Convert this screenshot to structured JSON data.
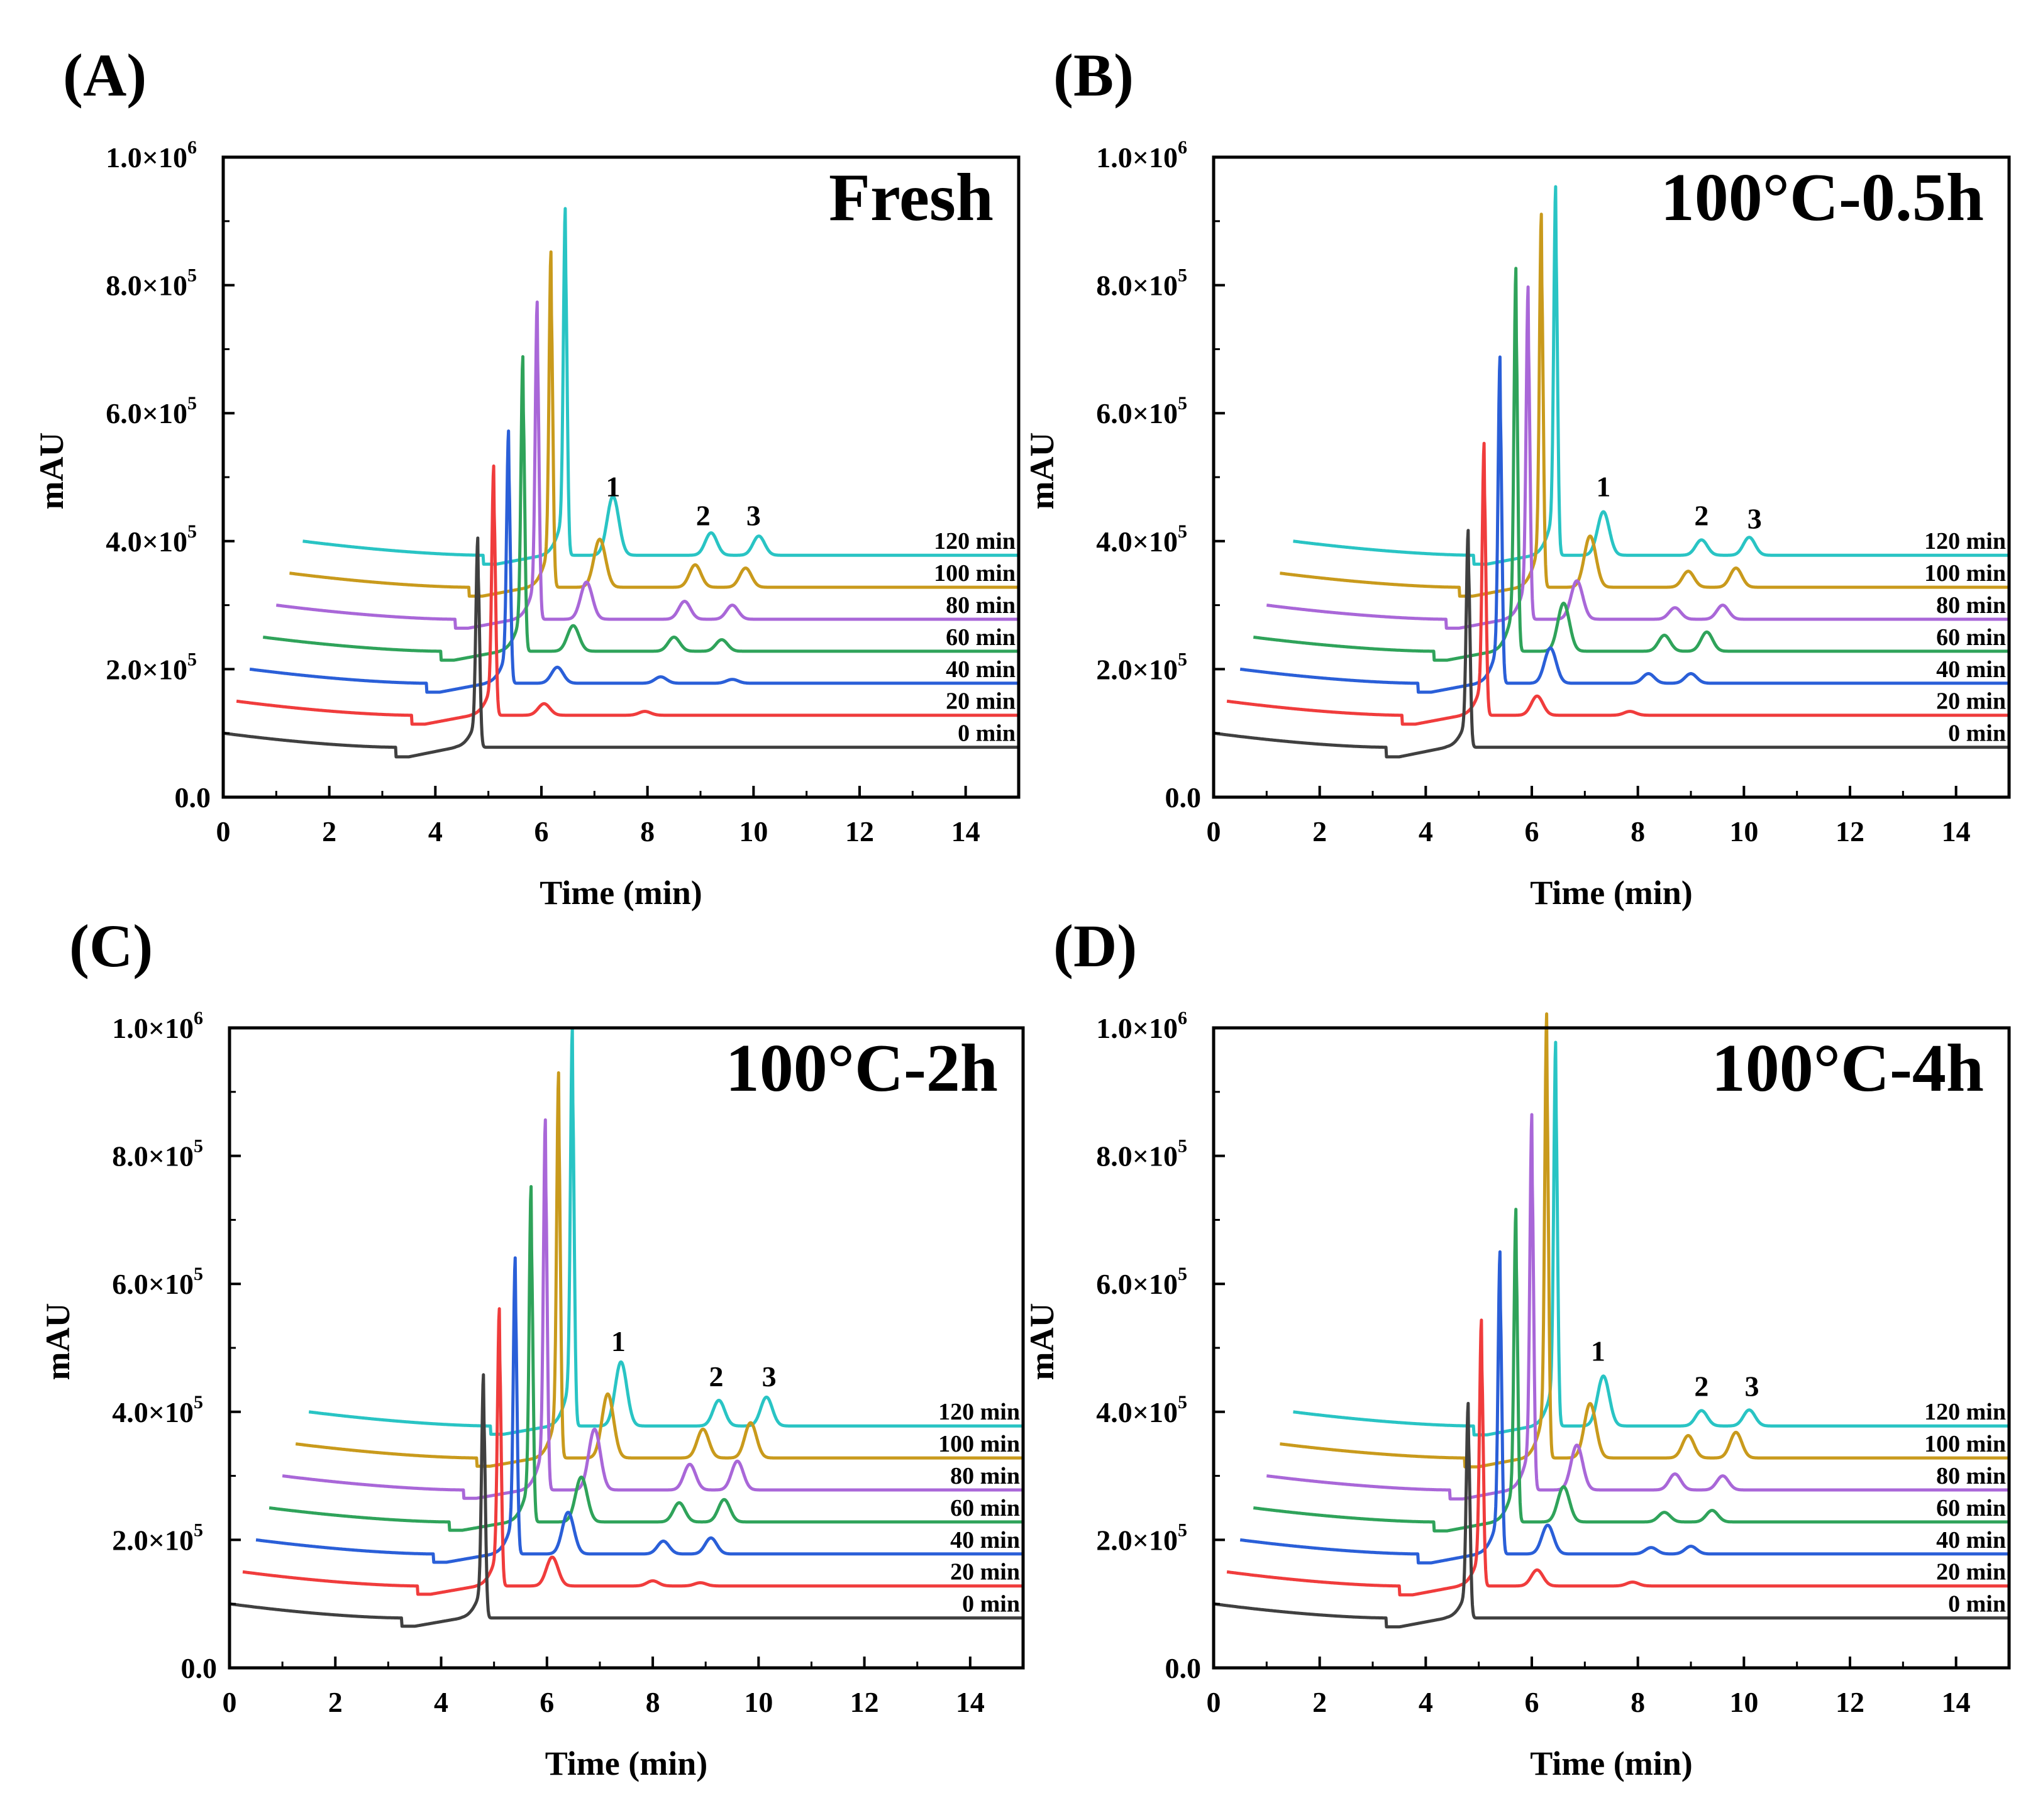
{
  "colors": {
    "0 min": "#404040",
    "20 min": "#f03c3c",
    "40 min": "#2a5fd8",
    "60 min": "#2fa35a",
    "80 min": "#a967d8",
    "100 min": "#c99a1c",
    "120 min": "#29c4c4"
  },
  "chart_data": [
    {
      "panel": "(A)",
      "title": "Fresh",
      "type": "line",
      "xlabel": "Time (min)",
      "ylabel": "mAU",
      "xlim": [
        0,
        15
      ],
      "ylim": [
        0,
        1000000
      ],
      "xticks": [
        "0",
        "2",
        "4",
        "6",
        "8",
        "10",
        "12",
        "14"
      ],
      "yticks": [
        "0.0",
        "2.0×10",
        "4.0×10",
        "6.0×10",
        "8.0×10",
        "1.0×10"
      ],
      "ytick_exponents": [
        "",
        "5",
        "5",
        "5",
        "5",
        "6"
      ],
      "peak_labels": [
        {
          "label": "1",
          "x": 7.35,
          "y": 470000
        },
        {
          "label": "2",
          "x": 9.05,
          "y": 425000
        },
        {
          "label": "3",
          "x": 10.0,
          "y": 425000
        }
      ],
      "series": [
        {
          "name": "0 min",
          "x_start": 0.0,
          "start": 100000,
          "base": 78000,
          "dip": 63000,
          "main_x": 4.8,
          "main_h": 355000,
          "peaks": []
        },
        {
          "name": "20 min",
          "x_start": 0.25,
          "start": 150000,
          "base": 128000,
          "dip": 114000,
          "main_x": 5.1,
          "main_h": 458000,
          "peaks": [
            [
              6.05,
              18000
            ],
            [
              7.95,
              6000
            ]
          ]
        },
        {
          "name": "40 min",
          "x_start": 0.5,
          "start": 200000,
          "base": 178000,
          "dip": 164000,
          "main_x": 5.38,
          "main_h": 512000,
          "peaks": [
            [
              6.3,
              25000
            ],
            [
              8.25,
              10000
            ],
            [
              9.6,
              6000
            ]
          ]
        },
        {
          "name": "60 min",
          "x_start": 0.75,
          "start": 250000,
          "base": 228000,
          "dip": 214000,
          "main_x": 5.65,
          "main_h": 618000,
          "peaks": [
            [
              6.6,
              40000
            ],
            [
              8.5,
              22000
            ],
            [
              9.4,
              18000
            ]
          ]
        },
        {
          "name": "80 min",
          "x_start": 1.0,
          "start": 300000,
          "base": 278000,
          "dip": 264000,
          "main_x": 5.92,
          "main_h": 698000,
          "peaks": [
            [
              6.85,
              58000
            ],
            [
              8.7,
              28000
            ],
            [
              9.6,
              22000
            ]
          ]
        },
        {
          "name": "100 min",
          "x_start": 1.25,
          "start": 350000,
          "base": 328000,
          "dip": 314000,
          "main_x": 6.18,
          "main_h": 772000,
          "peaks": [
            [
              7.1,
              75000
            ],
            [
              8.9,
              35000
            ],
            [
              9.85,
              30000
            ]
          ]
        },
        {
          "name": "120 min",
          "x_start": 1.5,
          "start": 400000,
          "base": 378000,
          "dip": 364000,
          "main_x": 6.45,
          "main_h": 837000,
          "peaks": [
            [
              7.35,
              92000
            ],
            [
              9.2,
              35000
            ],
            [
              10.1,
              30000
            ]
          ]
        }
      ]
    },
    {
      "panel": "(B)",
      "title": "100°C-0.5h",
      "type": "line",
      "xlabel": "Time (min)",
      "ylabel": "mAU",
      "xlim": [
        0,
        15
      ],
      "ylim": [
        0,
        1000000
      ],
      "xticks": [
        "0",
        "2",
        "4",
        "6",
        "8",
        "10",
        "12",
        "14"
      ],
      "yticks": [
        "0.0",
        "2.0×10",
        "4.0×10",
        "6.0×10",
        "8.0×10",
        "1.0×10"
      ],
      "ytick_exponents": [
        "",
        "5",
        "5",
        "5",
        "5",
        "6"
      ],
      "peak_labels": [
        {
          "label": "1",
          "x": 7.35,
          "y": 470000
        },
        {
          "label": "2",
          "x": 9.2,
          "y": 425000
        },
        {
          "label": "3",
          "x": 10.2,
          "y": 420000
        }
      ],
      "series": [
        {
          "name": "0 min",
          "x_start": 0.0,
          "start": 100000,
          "base": 78000,
          "dip": 63000,
          "main_x": 4.8,
          "main_h": 365000,
          "peaks": []
        },
        {
          "name": "20 min",
          "x_start": 0.25,
          "start": 150000,
          "base": 128000,
          "dip": 114000,
          "main_x": 5.1,
          "main_h": 488000,
          "peaks": [
            [
              6.1,
              30000
            ],
            [
              7.85,
              6000
            ]
          ]
        },
        {
          "name": "40 min",
          "x_start": 0.5,
          "start": 200000,
          "base": 178000,
          "dip": 164000,
          "main_x": 5.4,
          "main_h": 610000,
          "peaks": [
            [
              6.35,
              55000
            ],
            [
              8.2,
              15000
            ],
            [
              9.0,
              15000
            ]
          ]
        },
        {
          "name": "60 min",
          "x_start": 0.75,
          "start": 250000,
          "base": 228000,
          "dip": 214000,
          "main_x": 5.7,
          "main_h": 735000,
          "peaks": [
            [
              6.6,
              75000
            ],
            [
              8.5,
              25000
            ],
            [
              9.3,
              30000
            ]
          ]
        },
        {
          "name": "80 min",
          "x_start": 1.0,
          "start": 300000,
          "base": 278000,
          "dip": 264000,
          "main_x": 5.93,
          "main_h": 718000,
          "peaks": [
            [
              6.85,
              60000
            ],
            [
              8.7,
              18000
            ],
            [
              9.6,
              22000
            ]
          ]
        },
        {
          "name": "100 min",
          "x_start": 1.25,
          "start": 350000,
          "base": 328000,
          "dip": 314000,
          "main_x": 6.18,
          "main_h": 822000,
          "peaks": [
            [
              7.1,
              80000
            ],
            [
              8.95,
              25000
            ],
            [
              9.85,
              30000
            ]
          ]
        },
        {
          "name": "120 min",
          "x_start": 1.5,
          "start": 400000,
          "base": 378000,
          "dip": 364000,
          "main_x": 6.45,
          "main_h": 866000,
          "peaks": [
            [
              7.35,
              68000
            ],
            [
              9.2,
              24000
            ],
            [
              10.1,
              28000
            ]
          ]
        }
      ]
    },
    {
      "panel": "(C)",
      "title": "100°C-2h",
      "type": "line",
      "xlabel": "Time (min)",
      "ylabel": "mAU",
      "xlim": [
        0,
        15
      ],
      "ylim": [
        0,
        1000000
      ],
      "xticks": [
        "0",
        "2",
        "4",
        "6",
        "8",
        "10",
        "12",
        "14"
      ],
      "yticks": [
        "0.0",
        "2.0×10",
        "4.0×10",
        "6.0×10",
        "8.0×10",
        "1.0×10"
      ],
      "ytick_exponents": [
        "",
        "5",
        "5",
        "5",
        "5",
        "6"
      ],
      "peak_labels": [
        {
          "label": "1",
          "x": 7.35,
          "y": 495000
        },
        {
          "label": "2",
          "x": 9.2,
          "y": 440000
        },
        {
          "label": "3",
          "x": 10.2,
          "y": 440000
        }
      ],
      "series": [
        {
          "name": "0 min",
          "x_start": 0.0,
          "start": 100000,
          "base": 78000,
          "dip": 65000,
          "main_x": 4.8,
          "main_h": 400000,
          "peaks": []
        },
        {
          "name": "20 min",
          "x_start": 0.25,
          "start": 150000,
          "base": 128000,
          "dip": 115000,
          "main_x": 5.1,
          "main_h": 495000,
          "peaks": [
            [
              6.1,
              45000
            ],
            [
              8.0,
              8000
            ],
            [
              8.9,
              5000
            ]
          ]
        },
        {
          "name": "40 min",
          "x_start": 0.5,
          "start": 200000,
          "base": 178000,
          "dip": 165000,
          "main_x": 5.4,
          "main_h": 570000,
          "peaks": [
            [
              6.4,
              65000
            ],
            [
              8.2,
              20000
            ],
            [
              9.1,
              25000
            ]
          ]
        },
        {
          "name": "60 min",
          "x_start": 0.75,
          "start": 250000,
          "base": 228000,
          "dip": 215000,
          "main_x": 5.7,
          "main_h": 672000,
          "peaks": [
            [
              6.65,
              70000
            ],
            [
              8.5,
              30000
            ],
            [
              9.35,
              35000
            ]
          ]
        },
        {
          "name": "80 min",
          "x_start": 1.0,
          "start": 300000,
          "base": 278000,
          "dip": 265000,
          "main_x": 5.97,
          "main_h": 768000,
          "peaks": [
            [
              6.9,
              95000
            ],
            [
              8.7,
              40000
            ],
            [
              9.6,
              45000
            ]
          ]
        },
        {
          "name": "100 min",
          "x_start": 1.25,
          "start": 350000,
          "base": 328000,
          "dip": 315000,
          "main_x": 6.22,
          "main_h": 838000,
          "peaks": [
            [
              7.15,
              100000
            ],
            [
              8.95,
              45000
            ],
            [
              9.85,
              55000
            ]
          ]
        },
        {
          "name": "120 min",
          "x_start": 1.5,
          "start": 400000,
          "base": 378000,
          "dip": 365000,
          "main_x": 6.48,
          "main_h": 905000,
          "peaks": [
            [
              7.4,
              100000
            ],
            [
              9.25,
              40000
            ],
            [
              10.15,
              45000
            ]
          ]
        }
      ]
    },
    {
      "panel": "(D)",
      "title": "100°C-4h",
      "type": "line",
      "xlabel": "Time (min)",
      "ylabel": "mAU",
      "xlim": [
        0,
        15
      ],
      "ylim": [
        0,
        1000000
      ],
      "xticks": [
        "0",
        "2",
        "4",
        "6",
        "8",
        "10",
        "12",
        "14"
      ],
      "yticks": [
        "0.0",
        "2.0×10",
        "4.0×10",
        "6.0×10",
        "8.0×10",
        "1.0×10"
      ],
      "ytick_exponents": [
        "",
        "5",
        "5",
        "5",
        "5",
        "6"
      ],
      "peak_labels": [
        {
          "label": "1",
          "x": 7.25,
          "y": 480000
        },
        {
          "label": "2",
          "x": 9.2,
          "y": 425000
        },
        {
          "label": "3",
          "x": 10.15,
          "y": 425000
        }
      ],
      "series": [
        {
          "name": "0 min",
          "x_start": 0.0,
          "start": 100000,
          "base": 78000,
          "dip": 64000,
          "main_x": 4.8,
          "main_h": 362000,
          "peaks": []
        },
        {
          "name": "20 min",
          "x_start": 0.25,
          "start": 150000,
          "base": 128000,
          "dip": 114000,
          "main_x": 5.05,
          "main_h": 480000,
          "peaks": [
            [
              6.1,
              25000
            ],
            [
              7.9,
              6000
            ]
          ]
        },
        {
          "name": "40 min",
          "x_start": 0.5,
          "start": 200000,
          "base": 178000,
          "dip": 164000,
          "main_x": 5.4,
          "main_h": 578000,
          "peaks": [
            [
              6.3,
              45000
            ],
            [
              8.25,
              10000
            ],
            [
              9.0,
              12000
            ]
          ]
        },
        {
          "name": "60 min",
          "x_start": 0.75,
          "start": 250000,
          "base": 228000,
          "dip": 214000,
          "main_x": 5.7,
          "main_h": 642000,
          "peaks": [
            [
              6.6,
              55000
            ],
            [
              8.5,
              15000
            ],
            [
              9.4,
              18000
            ]
          ]
        },
        {
          "name": "80 min",
          "x_start": 1.0,
          "start": 300000,
          "base": 278000,
          "dip": 264000,
          "main_x": 6.0,
          "main_h": 775000,
          "peaks": [
            [
              6.85,
              70000
            ],
            [
              8.7,
              25000
            ],
            [
              9.6,
              22000
            ]
          ]
        },
        {
          "name": "100 min",
          "x_start": 1.25,
          "start": 350000,
          "base": 328000,
          "dip": 314000,
          "main_x": 6.28,
          "main_h": 916000,
          "peaks": [
            [
              7.1,
              85000
            ],
            [
              8.95,
              35000
            ],
            [
              9.85,
              40000
            ]
          ]
        },
        {
          "name": "120 min",
          "x_start": 1.5,
          "start": 400000,
          "base": 378000,
          "dip": 364000,
          "main_x": 6.45,
          "main_h": 886000,
          "peaks": [
            [
              7.35,
              78000
            ],
            [
              9.2,
              24000
            ],
            [
              10.1,
              25000
            ]
          ]
        }
      ]
    }
  ]
}
